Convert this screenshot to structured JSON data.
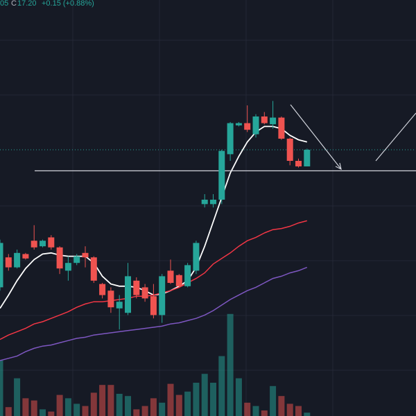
{
  "header": {
    "tail": "05",
    "close_label": "C",
    "close": "17.20",
    "change": "+0.15 (+0.88%)"
  },
  "chart_data": {
    "type": "candlestick",
    "ylim": [
      14.8,
      18.55
    ],
    "up_color": "#26a69a",
    "down_color": "#ef5350",
    "open": [
      15.96,
      16.23,
      16.14,
      16.26,
      16.38,
      16.33,
      16.41,
      16.32,
      16.11,
      16.18,
      16.27,
      16.23,
      15.99,
      15.93,
      15.77,
      15.73,
      16.02,
      15.96,
      15.88,
      15.71,
      16.11,
      16.07,
      15.97,
      16.11,
      16.71,
      16.71,
      16.75,
      17.16,
      17.42,
      17.44,
      17.34,
      17.5,
      17.43,
      17.49,
      17.3,
      17.1,
      17.05
    ],
    "high": [
      16.39,
      16.26,
      16.3,
      16.27,
      16.52,
      16.39,
      16.43,
      16.33,
      16.24,
      16.26,
      16.33,
      16.24,
      16.0,
      15.96,
      15.89,
      16.18,
      16.05,
      15.99,
      15.99,
      16.08,
      16.21,
      16.08,
      16.18,
      16.38,
      16.8,
      16.8,
      17.2,
      17.45,
      17.45,
      17.6,
      17.52,
      17.54,
      17.64,
      17.5,
      17.31,
      17.12,
      17.21
    ],
    "low": [
      15.93,
      16.11,
      16.13,
      16.21,
      16.3,
      16.32,
      16.3,
      16.08,
      16.02,
      16.16,
      16.14,
      16.0,
      15.86,
      15.73,
      15.58,
      15.71,
      15.86,
      15.83,
      15.68,
      15.64,
      15.99,
      15.96,
      15.96,
      16.08,
      16.68,
      16.68,
      16.71,
      17.1,
      17.41,
      17.36,
      17.31,
      17.43,
      17.39,
      17.29,
      17.06,
      17.04,
      17.05
    ],
    "close": [
      16.36,
      16.14,
      16.27,
      16.22,
      16.32,
      16.38,
      16.32,
      16.13,
      16.18,
      16.24,
      16.23,
      16.02,
      15.89,
      15.78,
      15.83,
      16.06,
      15.89,
      15.86,
      15.71,
      16.06,
      16.0,
      15.97,
      16.16,
      16.36,
      16.75,
      16.75,
      17.19,
      17.44,
      17.44,
      17.38,
      17.5,
      17.44,
      17.49,
      17.3,
      17.1,
      17.05,
      17.2
    ],
    "volume": {
      "ylim": [
        0,
        100
      ],
      "values": [
        50,
        8,
        34,
        16,
        14,
        6,
        4,
        19,
        16,
        11,
        9,
        21,
        28,
        28,
        20,
        18,
        6,
        9,
        16,
        12,
        29,
        19,
        22,
        30,
        38,
        30,
        54,
        92,
        34,
        12,
        9,
        5,
        27,
        18,
        11,
        9,
        3
      ]
    },
    "moving_averages": [
      {
        "color": "#ffffff",
        "values": [
          15.77,
          15.89,
          16.02,
          16.13,
          16.21,
          16.26,
          16.27,
          16.25,
          16.24,
          16.24,
          16.24,
          16.18,
          16.06,
          15.99,
          15.97,
          15.97,
          15.96,
          15.93,
          15.89,
          15.9,
          15.93,
          15.97,
          16.02,
          16.14,
          16.33,
          16.55,
          16.77,
          16.99,
          17.14,
          17.27,
          17.36,
          17.41,
          17.41,
          17.39,
          17.33,
          17.29,
          17.27
        ]
      },
      {
        "color": "#f23645",
        "values": [
          15.49,
          15.53,
          15.56,
          15.59,
          15.63,
          15.65,
          15.68,
          15.71,
          15.74,
          15.78,
          15.81,
          15.83,
          15.83,
          15.84,
          15.85,
          15.86,
          15.88,
          15.88,
          15.89,
          15.91,
          15.93,
          15.96,
          16.0,
          16.04,
          16.09,
          16.17,
          16.22,
          16.27,
          16.33,
          16.38,
          16.41,
          16.45,
          16.48,
          16.49,
          16.51,
          16.54,
          16.56
        ]
      },
      {
        "color": "#7e57c2",
        "values": [
          15.3,
          15.32,
          15.34,
          15.38,
          15.41,
          15.43,
          15.44,
          15.46,
          15.48,
          15.5,
          15.51,
          15.53,
          15.54,
          15.55,
          15.56,
          15.57,
          15.58,
          15.59,
          15.6,
          15.61,
          15.63,
          15.64,
          15.66,
          15.68,
          15.71,
          15.75,
          15.8,
          15.85,
          15.89,
          15.93,
          15.96,
          16.0,
          16.04,
          16.06,
          16.09,
          16.11,
          16.14
        ]
      }
    ],
    "price_line": 17.2,
    "level_line": 17.01
  }
}
